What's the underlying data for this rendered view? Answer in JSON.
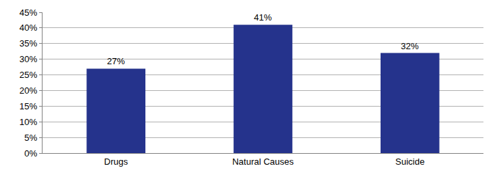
{
  "chart_data": {
    "type": "bar",
    "categories": [
      "Drugs",
      "Natural Causes",
      "Suicide"
    ],
    "values": [
      27,
      41,
      32
    ],
    "value_labels": [
      "27%",
      "41%",
      "32%"
    ],
    "data_labels": true,
    "color": "#25338c",
    "ylim": [
      0,
      45
    ],
    "yticks": [
      {
        "value": 0,
        "label": "0%"
      },
      {
        "value": 5,
        "label": "5%"
      },
      {
        "value": 10,
        "label": "10%"
      },
      {
        "value": 15,
        "label": "15%"
      },
      {
        "value": 20,
        "label": "20%"
      },
      {
        "value": 25,
        "label": "25%"
      },
      {
        "value": 30,
        "label": "30%"
      },
      {
        "value": 35,
        "label": "35%"
      },
      {
        "value": 40,
        "label": "40%"
      },
      {
        "value": 45,
        "label": "45%"
      }
    ],
    "grid": true
  }
}
